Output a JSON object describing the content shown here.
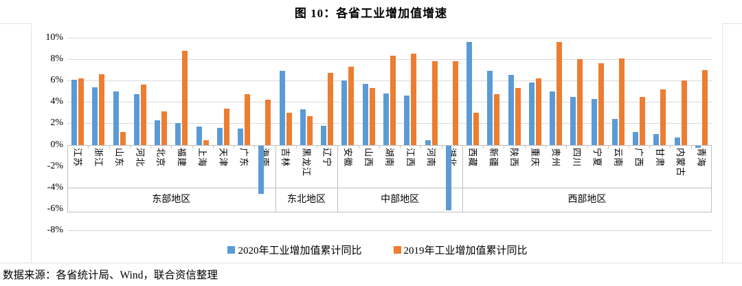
{
  "title": "图 10：各省工业增加值增速",
  "footer": "数据来源：各省统计局、Wind，联合资信整理",
  "colors": {
    "series_2020": "#5B9BD5",
    "series_2019": "#ED7D31",
    "gridline": "#d9d9d9",
    "axis_line": "#bfbfbf"
  },
  "chart_data": {
    "type": "bar",
    "title": "图 10：各省工业增加值增速",
    "xlabel": "",
    "ylabel": "",
    "ylim": [
      -8,
      10
    ],
    "grid": true,
    "legend_position": "bottom",
    "y_ticks": [
      "10%",
      "8%",
      "6%",
      "4%",
      "2%",
      "0%",
      "-2%",
      "-4%",
      "-6%",
      "-8%"
    ],
    "y_tick_values": [
      10,
      8,
      6,
      4,
      2,
      0,
      -2,
      -4,
      -6,
      -8
    ],
    "categories": [
      "江苏",
      "浙江",
      "山东",
      "河北",
      "北京",
      "福建",
      "上海",
      "天津",
      "广东",
      "海南",
      "吉林",
      "黑龙江",
      "辽宁",
      "安徽",
      "山西",
      "湖南",
      "江西",
      "河南",
      "湖北",
      "西藏",
      "新疆",
      "陕西",
      "重庆",
      "贵州",
      "四川",
      "宁夏",
      "云南",
      "广西",
      "甘肃",
      "内蒙古",
      "青海"
    ],
    "region_groups": [
      {
        "label": "东部地区",
        "span": 10
      },
      {
        "label": "东北地区",
        "span": 3
      },
      {
        "label": "中部地区",
        "span": 6
      },
      {
        "label": "西部地区",
        "span": 12
      }
    ],
    "series": [
      {
        "name": "2020年工业增加值累计同比",
        "color": "#5B9BD5",
        "values": [
          6.1,
          5.4,
          5.0,
          4.7,
          2.3,
          2.0,
          1.7,
          1.6,
          1.5,
          -4.5,
          6.9,
          3.3,
          1.8,
          6.0,
          5.7,
          4.8,
          4.6,
          0.4,
          -6.1,
          9.6,
          6.9,
          6.5,
          5.8,
          5.0,
          4.5,
          4.3,
          2.4,
          1.2,
          1.0,
          0.7,
          -0.2
        ]
      },
      {
        "name": "2019年工业增加值累计同比",
        "color": "#ED7D31",
        "values": [
          6.2,
          6.6,
          1.2,
          5.6,
          3.1,
          8.8,
          0.4,
          3.4,
          4.7,
          4.2,
          3.0,
          2.7,
          6.7,
          7.3,
          5.3,
          8.3,
          8.5,
          7.8,
          7.8,
          3.0,
          4.7,
          5.3,
          6.2,
          9.6,
          8.0,
          7.6,
          8.1,
          4.5,
          5.2,
          6.0,
          7.0
        ]
      }
    ]
  }
}
